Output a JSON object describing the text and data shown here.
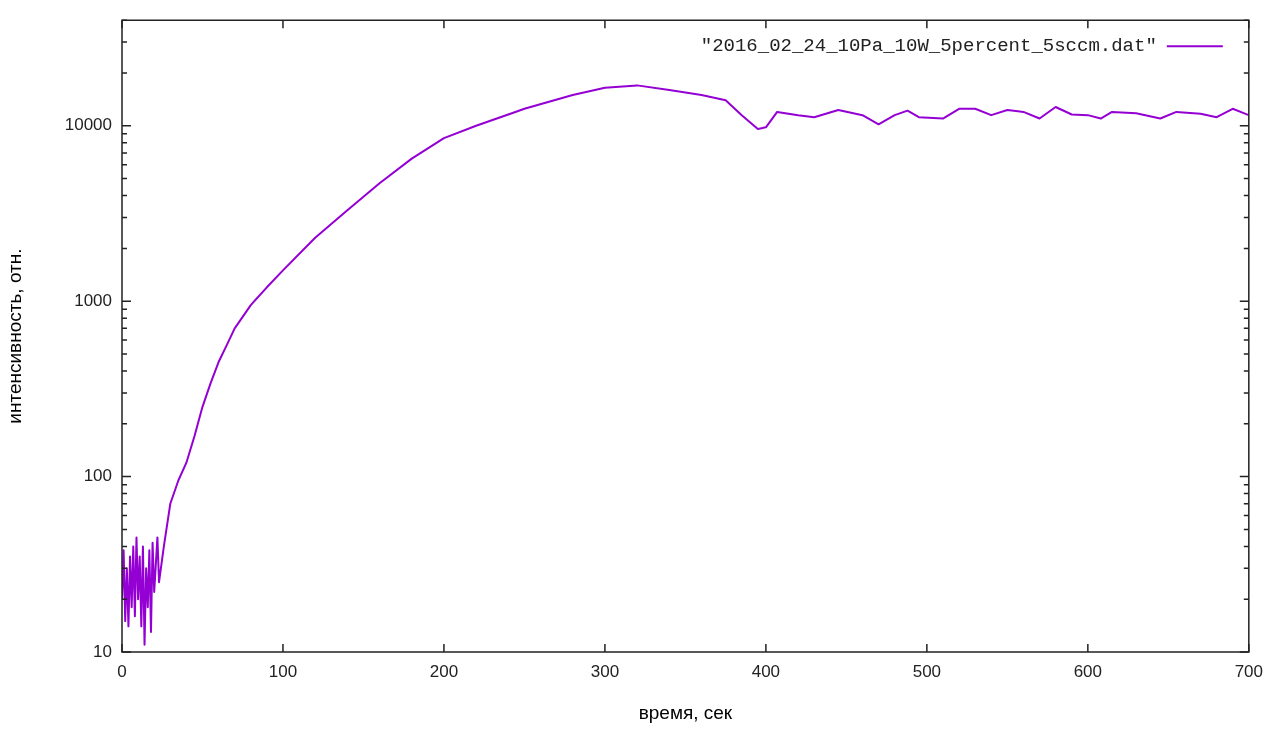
{
  "chart_data": {
    "type": "line",
    "xlabel": "время, сек",
    "ylabel": "интенсивность, отн.",
    "log": "y",
    "grid": false,
    "legend": "top right",
    "marker": "none",
    "line_style": "solid",
    "xlim": [
      0,
      700
    ],
    "xticks": [
      0,
      100,
      200,
      300,
      400,
      500,
      600,
      700
    ],
    "ylim": [
      10,
      40000
    ],
    "yticks": [
      10,
      {
        "value": 20,
        "label": null
      },
      {
        "value": 30,
        "label": null
      },
      {
        "value": 40,
        "label": null
      },
      {
        "value": 50,
        "label": null
      },
      {
        "value": 60,
        "label": null
      },
      {
        "value": 70,
        "label": null
      },
      {
        "value": 80,
        "label": null
      },
      {
        "value": 90,
        "label": null
      },
      100,
      {
        "value": 200,
        "label": null
      },
      {
        "value": 300,
        "label": null
      },
      {
        "value": 400,
        "label": null
      },
      {
        "value": 500,
        "label": null
      },
      {
        "value": 600,
        "label": null
      },
      {
        "value": 700,
        "label": null
      },
      {
        "value": 800,
        "label": null
      },
      {
        "value": 900,
        "label": null
      },
      1000,
      {
        "value": 2000,
        "label": null
      },
      {
        "value": 3000,
        "label": null
      },
      {
        "value": 4000,
        "label": null
      },
      {
        "value": 5000,
        "label": null
      },
      {
        "value": 6000,
        "label": null
      },
      {
        "value": 7000,
        "label": null
      },
      {
        "value": 8000,
        "label": null
      },
      {
        "value": 9000,
        "label": null
      },
      10000,
      {
        "value": 20000,
        "label": null
      },
      {
        "value": 30000,
        "label": null
      },
      {
        "value": 40000,
        "label": null
      }
    ],
    "series": [
      {
        "name": "\"2016_02_24_10Pa_10W_5percent_5sccm.dat\"",
        "color": "#9400d3",
        "x": [
          0,
          1,
          2,
          3,
          4,
          5,
          6,
          7,
          8,
          9,
          10,
          11,
          12,
          13,
          14,
          15,
          16,
          17,
          18,
          19,
          20,
          22,
          23,
          26,
          30,
          35,
          40,
          45,
          50,
          55,
          60,
          65,
          70,
          80,
          90,
          100,
          120,
          140,
          160,
          180,
          200,
          220,
          250,
          280,
          300,
          320,
          340,
          360,
          375,
          385,
          395,
          400,
          407,
          420,
          430,
          445,
          460,
          470,
          480,
          488,
          495,
          510,
          520,
          530,
          540,
          550,
          560,
          570,
          580,
          590,
          600,
          608,
          615,
          630,
          645,
          655,
          670,
          680,
          690,
          700
        ],
        "values": [
          20,
          38,
          15,
          30,
          14,
          35,
          18,
          40,
          16,
          45,
          20,
          35,
          14,
          40,
          11,
          30,
          18,
          38,
          13,
          42,
          22,
          45,
          25,
          40,
          70,
          95,
          120,
          170,
          250,
          340,
          450,
          560,
          700,
          950,
          1200,
          1500,
          2300,
          3300,
          4700,
          6500,
          8500,
          10000,
          12500,
          15000,
          16500,
          17000,
          16000,
          15000,
          14000,
          11500,
          9600,
          9800,
          12000,
          11500,
          11200,
          12300,
          11500,
          10200,
          11500,
          12200,
          11200,
          11000,
          12500,
          12500,
          11500,
          12300,
          12000,
          11000,
          12800,
          11600,
          11500,
          11000,
          12000,
          11800,
          11000,
          12000,
          11700,
          11200,
          12500,
          11500
        ]
      }
    ]
  }
}
